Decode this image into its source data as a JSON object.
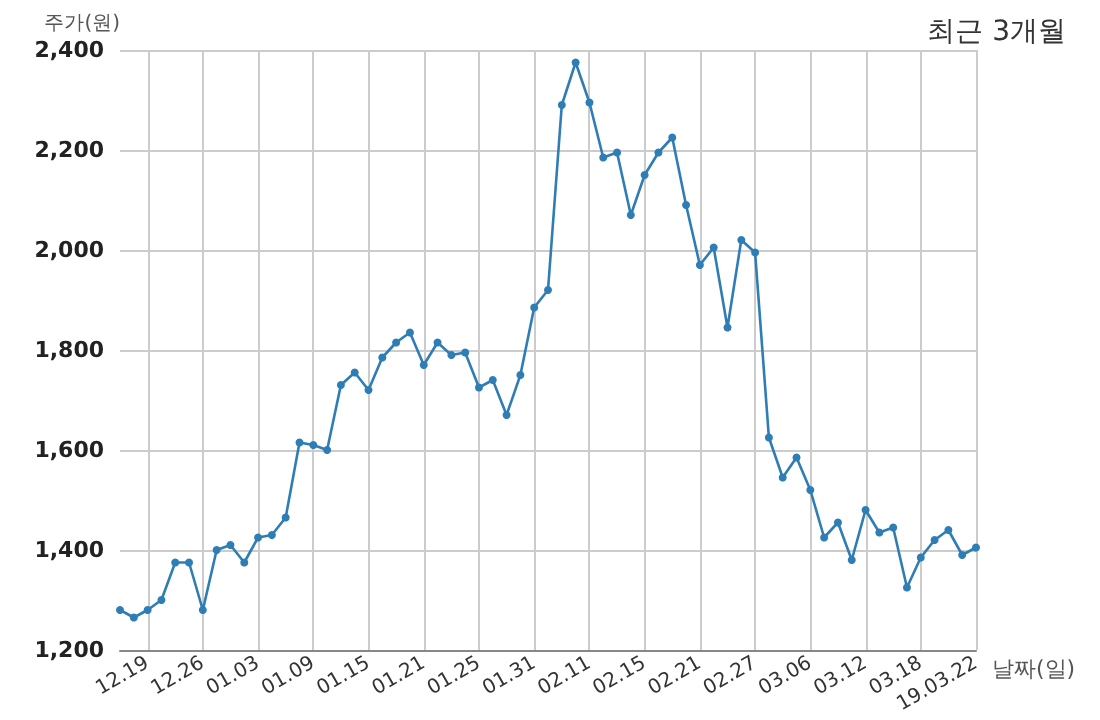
{
  "chart_data": {
    "type": "line",
    "title": "최근 3개월",
    "xlabel": "날짜(일)",
    "ylabel": "주가(원)",
    "categories": [
      null,
      null,
      "12.19",
      null,
      null,
      null,
      "12.26",
      null,
      null,
      null,
      "01.03",
      null,
      null,
      null,
      "01.09",
      null,
      null,
      null,
      "01.15",
      null,
      null,
      null,
      "01.21",
      null,
      null,
      null,
      "01.25",
      null,
      null,
      null,
      "01.31",
      null,
      null,
      null,
      "02.11",
      null,
      null,
      null,
      "02.15",
      null,
      null,
      null,
      "02.21",
      null,
      null,
      null,
      "02.27",
      null,
      null,
      null,
      "03.06",
      null,
      null,
      null,
      "03.12",
      null,
      null,
      null,
      "03.18",
      null,
      null,
      null,
      "19.03.22"
    ],
    "series": [
      {
        "color": "#2e7db5",
        "values": [
          1280,
          1265,
          1280,
          1300,
          1375,
          1375,
          1280,
          1400,
          1410,
          1375,
          1425,
          1430,
          1465,
          1615,
          1610,
          1600,
          1730,
          1755,
          1720,
          1785,
          1815,
          1835,
          1770,
          1815,
          1790,
          1795,
          1725,
          1740,
          1670,
          1750,
          1885,
          1920,
          2290,
          2375,
          2295,
          2185,
          2195,
          2070,
          2150,
          2195,
          2225,
          2090,
          1970,
          2005,
          1845,
          2020,
          1995,
          1625,
          1545,
          1585,
          1520,
          1425,
          1455,
          1380,
          1480,
          1435,
          1445,
          1325,
          1385,
          1420,
          1440,
          1390,
          1405
        ]
      }
    ],
    "ylim": [
      1200,
      2400
    ],
    "yticks": [
      {
        "value": 1200,
        "label": "1,200"
      },
      {
        "value": 1400,
        "label": "1,400"
      },
      {
        "value": 1600,
        "label": "1,600"
      },
      {
        "value": 1800,
        "label": "1,800"
      },
      {
        "value": 2000,
        "label": "2,000"
      },
      {
        "value": 2200,
        "label": "2,200"
      },
      {
        "value": 2400,
        "label": "2,400"
      }
    ],
    "grid": true,
    "marker": "circle",
    "line_style": "solid"
  }
}
